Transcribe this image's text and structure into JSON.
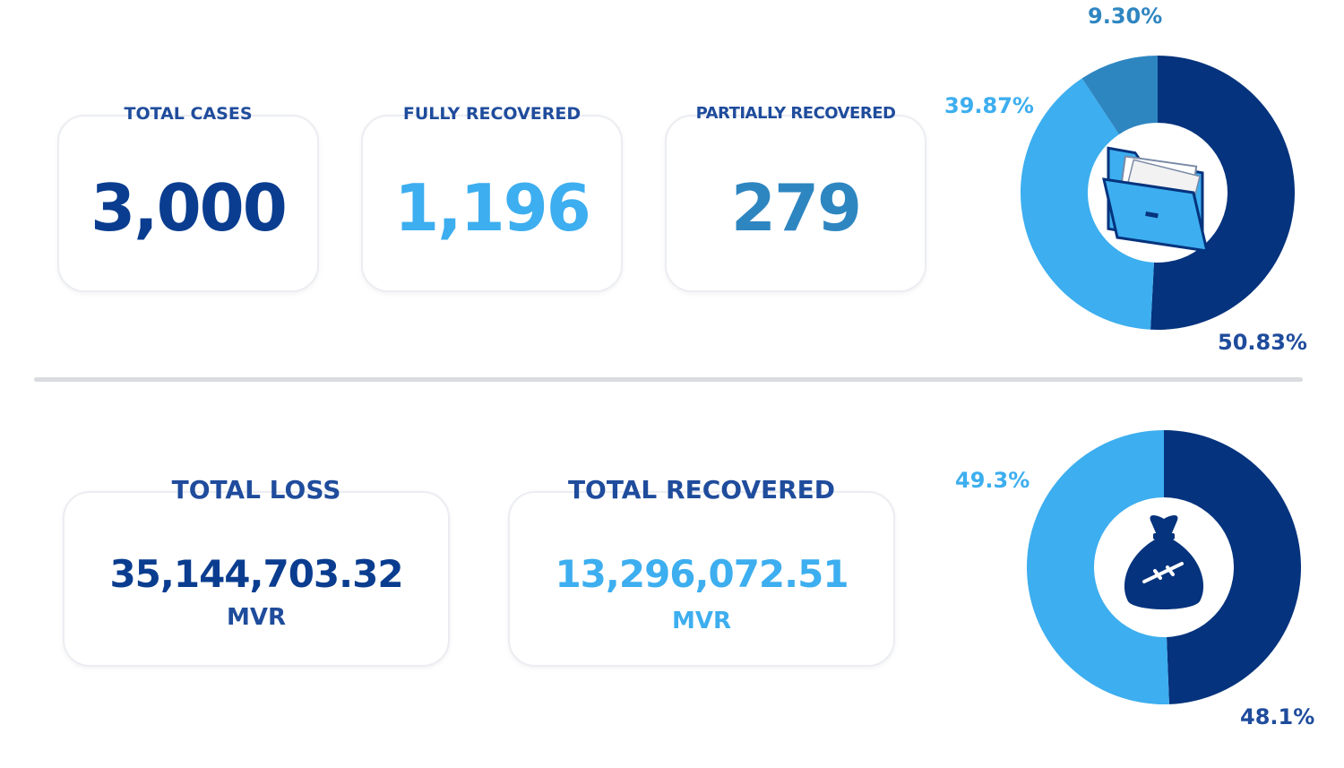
{
  "colors": {
    "dark": "#05337d",
    "light": "#3daeef",
    "mid": "#2e86c1",
    "label": "#1f4c9c",
    "card_border": "#ebedf2"
  },
  "cases": {
    "total": {
      "label": "TOTAL CASES",
      "value": "3,000"
    },
    "fully": {
      "label": "FULLY RECOVERED",
      "value": "1,196"
    },
    "partial": {
      "label": "PARTIALLY RECOVERED",
      "value": "279"
    }
  },
  "money": {
    "loss": {
      "label": "TOTAL LOSS",
      "value": "35,144,703.32",
      "unit": "MVR"
    },
    "recovered": {
      "label": "TOTAL RECOVERED",
      "value": "13,296,072.51",
      "unit": "MVR"
    }
  },
  "chart_data": [
    {
      "type": "pie",
      "center_icon": "folder-icon",
      "slices": [
        {
          "value": 50.83,
          "label": "50.83%",
          "color": "#05337d"
        },
        {
          "value": 39.87,
          "label": "39.87%",
          "color": "#3daeef"
        },
        {
          "value": 9.3,
          "label": "9.30%",
          "color": "#2e86c1"
        }
      ]
    },
    {
      "type": "pie",
      "center_icon": "money-bag-icon",
      "slices": [
        {
          "value": 48.1,
          "label": "48.1%",
          "color": "#05337d"
        },
        {
          "value": 49.3,
          "label": "49.3%",
          "color": "#3daeef"
        }
      ]
    }
  ]
}
